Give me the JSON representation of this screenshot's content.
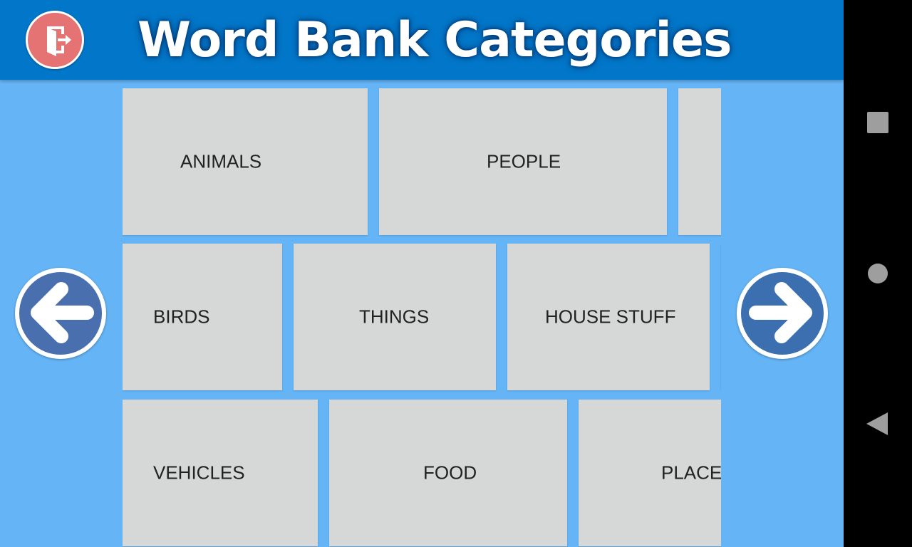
{
  "header": {
    "title": "Word Bank Categories",
    "exit_icon": "exit-door-icon"
  },
  "categories": {
    "row1": [
      "ANIMALS",
      "PEOPLE",
      ""
    ],
    "row2": [
      "BIRDS",
      "THINGS",
      "HOUSE STUFF"
    ],
    "row3": [
      "VEHICLES",
      "FOOD",
      "PLACES"
    ]
  },
  "navigation": {
    "prev_icon": "arrow-left-icon",
    "next_icon": "arrow-right-icon"
  },
  "system_nav": {
    "recents_icon": "square-icon",
    "home_icon": "circle-icon",
    "back_icon": "triangle-back-icon"
  },
  "colors": {
    "header_bg": "#0277c9",
    "page_bg": "#64b4f6",
    "tile_bg": "#d6d7d7",
    "exit_button": "#e57373",
    "arrow_button": "#4a6fae"
  }
}
